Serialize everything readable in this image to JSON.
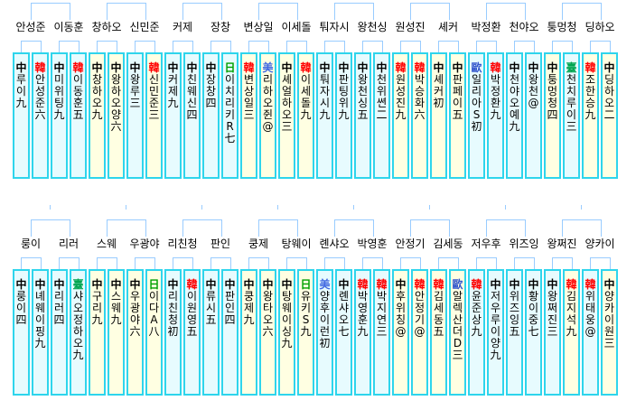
{
  "colors": {
    "background": "#ffffff",
    "box_border": "#2ed5ec",
    "fill_cyan": "#e7fbfe",
    "fill_yellow": "#ffffe2",
    "bracket_line": "#99ccff",
    "label_text": "#000000",
    "nat_colors": {
      "中": "#000000",
      "韓": "#ff0000",
      "日": "#00a000",
      "臺": "#00a550",
      "美": "#4169e1",
      "歐": "#3355cc"
    }
  },
  "rows": [
    {
      "name": "top",
      "has_upper_stubs": false,
      "matches": [
        {
          "label": "안성준",
          "players": [
            {
              "nat": "中",
              "name": "루이",
              "rank": "九",
              "fill": "cyan"
            },
            {
              "nat": "韓",
              "name": "안성준",
              "rank": "六",
              "fill": "cyan"
            }
          ]
        },
        {
          "label": "이동훈",
          "players": [
            {
              "nat": "中",
              "name": "미위팅",
              "rank": "九",
              "fill": "cyan"
            },
            {
              "nat": "韓",
              "name": "이동훈",
              "rank": "五",
              "fill": "cyan"
            }
          ]
        },
        {
          "label": "창하오",
          "players": [
            {
              "nat": "中",
              "name": "창하오",
              "rank": "九",
              "fill": "yellow"
            },
            {
              "nat": "中",
              "name": "왕하오양",
              "rank": "六",
              "fill": "yellow"
            }
          ]
        },
        {
          "label": "신민준",
          "players": [
            {
              "nat": "中",
              "name": "왕루",
              "rank": "三",
              "fill": "cyan"
            },
            {
              "nat": "韓",
              "name": "신민준",
              "rank": "三",
              "fill": "yellow"
            }
          ]
        },
        {
          "label": "커제",
          "players": [
            {
              "nat": "中",
              "name": "커제",
              "rank": "九",
              "fill": "cyan"
            },
            {
              "nat": "中",
              "name": "친웨신",
              "rank": "四",
              "fill": "cyan"
            }
          ]
        },
        {
          "label": "장창",
          "players": [
            {
              "nat": "中",
              "name": "장창",
              "rank": "四",
              "fill": "cyan"
            },
            {
              "nat": "日",
              "name": "이치리키R",
              "rank": "七",
              "fill": "cyan"
            }
          ]
        },
        {
          "label": "변상일",
          "players": [
            {
              "nat": "韓",
              "name": "변상일",
              "rank": "三",
              "fill": "yellow"
            },
            {
              "nat": "美",
              "name": "리하오쥔",
              "rank": "@",
              "fill": "yellow"
            }
          ]
        },
        {
          "label": "이세돌",
          "players": [
            {
              "nat": "中",
              "name": "셰얼하오",
              "rank": "三",
              "fill": "yellow"
            },
            {
              "nat": "韓",
              "name": "이세돌",
              "rank": "九",
              "fill": "yellow"
            }
          ]
        },
        {
          "label": "퉈자시",
          "players": [
            {
              "nat": "中",
              "name": "퉈자시",
              "rank": "九",
              "fill": "cyan"
            },
            {
              "nat": "中",
              "name": "판팅위",
              "rank": "九",
              "fill": "cyan"
            }
          ]
        },
        {
          "label": "왕천싱",
          "players": [
            {
              "nat": "中",
              "name": "왕천싱",
              "rank": "五",
              "fill": "cyan"
            },
            {
              "nat": "中",
              "name": "천위쎤",
              "rank": "二",
              "fill": "cyan"
            }
          ]
        },
        {
          "label": "원성진",
          "players": [
            {
              "nat": "韓",
              "name": "원성진",
              "rank": "九",
              "fill": "yellow"
            },
            {
              "nat": "韓",
              "name": "박승화",
              "rank": "六",
              "fill": "yellow"
            }
          ]
        },
        {
          "label": "셰커",
          "players": [
            {
              "nat": "中",
              "name": "셰커",
              "rank": "初",
              "fill": "yellow"
            },
            {
              "nat": "中",
              "name": "판페이",
              "rank": "五",
              "fill": "yellow"
            }
          ]
        },
        {
          "label": "박정환",
          "players": [
            {
              "nat": "歐",
              "name": "일리아S",
              "rank": "初",
              "fill": "cyan"
            },
            {
              "nat": "韓",
              "name": "박정환",
              "rank": "九",
              "fill": "cyan"
            }
          ]
        },
        {
          "label": "천야오",
          "players": [
            {
              "nat": "中",
              "name": "천야오예",
              "rank": "九",
              "fill": "cyan"
            },
            {
              "nat": "中",
              "name": "왕천",
              "rank": "@",
              "fill": "cyan"
            }
          ]
        },
        {
          "label": "퉁멍청",
          "players": [
            {
              "nat": "中",
              "name": "퉁멍청",
              "rank": "四",
              "fill": "yellow"
            },
            {
              "nat": "臺",
              "name": "천치루이",
              "rank": "三",
              "fill": "cyan"
            }
          ]
        },
        {
          "label": "딩하오",
          "players": [
            {
              "nat": "韓",
              "name": "조한승",
              "rank": "九",
              "fill": "yellow"
            },
            {
              "nat": "中",
              "name": "딩하오",
              "rank": "二",
              "fill": "yellow"
            }
          ]
        }
      ]
    },
    {
      "name": "bottom",
      "has_upper_stubs": true,
      "matches": [
        {
          "label": "룽이",
          "players": [
            {
              "nat": "中",
              "name": "룽이",
              "rank": "四",
              "fill": "cyan"
            },
            {
              "nat": "中",
              "name": "녜웨이핑",
              "rank": "九",
              "fill": "cyan"
            }
          ]
        },
        {
          "label": "리러",
          "players": [
            {
              "nat": "中",
              "name": "리러",
              "rank": "四",
              "fill": "cyan"
            },
            {
              "nat": "臺",
              "name": "샤오정하오",
              "rank": "九",
              "fill": "cyan"
            }
          ]
        },
        {
          "label": "스웨",
          "players": [
            {
              "nat": "中",
              "name": "구리",
              "rank": "九",
              "fill": "yellow"
            },
            {
              "nat": "中",
              "name": "스웨",
              "rank": "九",
              "fill": "yellow"
            }
          ]
        },
        {
          "label": "우광야",
          "players": [
            {
              "nat": "中",
              "name": "우광야",
              "rank": "六",
              "fill": "yellow"
            },
            {
              "nat": "日",
              "name": "이다A",
              "rank": "八",
              "fill": "yellow"
            }
          ]
        },
        {
          "label": "리친청",
          "players": [
            {
              "nat": "中",
              "name": "리친청",
              "rank": "初",
              "fill": "cyan"
            },
            {
              "nat": "韓",
              "name": "이원영",
              "rank": "五",
              "fill": "cyan"
            }
          ]
        },
        {
          "label": "판인",
          "players": [
            {
              "nat": "中",
              "name": "류시",
              "rank": "五",
              "fill": "cyan"
            },
            {
              "nat": "中",
              "name": "판인",
              "rank": "四",
              "fill": "cyan"
            }
          ]
        },
        {
          "label": "쿵제",
          "players": [
            {
              "nat": "中",
              "name": "쿵제",
              "rank": "九",
              "fill": "yellow"
            },
            {
              "nat": "中",
              "name": "왕타오",
              "rank": "六",
              "fill": "yellow"
            }
          ]
        },
        {
          "label": "탕웨이",
          "players": [
            {
              "nat": "中",
              "name": "탕웨이싱",
              "rank": "九",
              "fill": "yellow"
            },
            {
              "nat": "日",
              "name": "유키S",
              "rank": "九",
              "fill": "yellow"
            }
          ]
        },
        {
          "label": "롄샤오",
          "players": [
            {
              "nat": "美",
              "name": "양후이런",
              "rank": "初",
              "fill": "cyan"
            },
            {
              "nat": "中",
              "name": "롄샤오",
              "rank": "七",
              "fill": "cyan"
            }
          ]
        },
        {
          "label": "박영훈",
          "players": [
            {
              "nat": "韓",
              "name": "박영훈",
              "rank": "九",
              "fill": "cyan"
            },
            {
              "nat": "韓",
              "name": "박지연",
              "rank": "三",
              "fill": "cyan"
            }
          ]
        },
        {
          "label": "안정기",
          "players": [
            {
              "nat": "中",
              "name": "후위칭",
              "rank": "@",
              "fill": "yellow"
            },
            {
              "nat": "韓",
              "name": "안정기",
              "rank": "@",
              "fill": "yellow"
            }
          ]
        },
        {
          "label": "김세동",
          "players": [
            {
              "nat": "韓",
              "name": "김세동",
              "rank": "五",
              "fill": "yellow"
            },
            {
              "nat": "歐",
              "name": "알렉산더D",
              "rank": "三",
              "fill": "yellow"
            }
          ]
        },
        {
          "label": "저우후",
          "players": [
            {
              "nat": "韓",
              "name": "윤준상",
              "rank": "九",
              "fill": "cyan"
            },
            {
              "nat": "中",
              "name": "저우루이양",
              "rank": "九",
              "fill": "cyan"
            }
          ]
        },
        {
          "label": "위즈잉",
          "players": [
            {
              "nat": "中",
              "name": "위즈잉",
              "rank": "五",
              "fill": "cyan"
            },
            {
              "nat": "中",
              "name": "황이중",
              "rank": "七",
              "fill": "cyan"
            }
          ]
        },
        {
          "label": "왕쩌진",
          "players": [
            {
              "nat": "中",
              "name": "왕쩌진",
              "rank": "三",
              "fill": "cyan"
            },
            {
              "nat": "韓",
              "name": "김지석",
              "rank": "九",
              "fill": "yellow"
            }
          ]
        },
        {
          "label": "양카이",
          "players": [
            {
              "nat": "韓",
              "name": "위태웅",
              "rank": "@",
              "fill": "cyan"
            },
            {
              "nat": "中",
              "name": "양카이원",
              "rank": "三",
              "fill": "yellow"
            }
          ]
        }
      ]
    }
  ]
}
